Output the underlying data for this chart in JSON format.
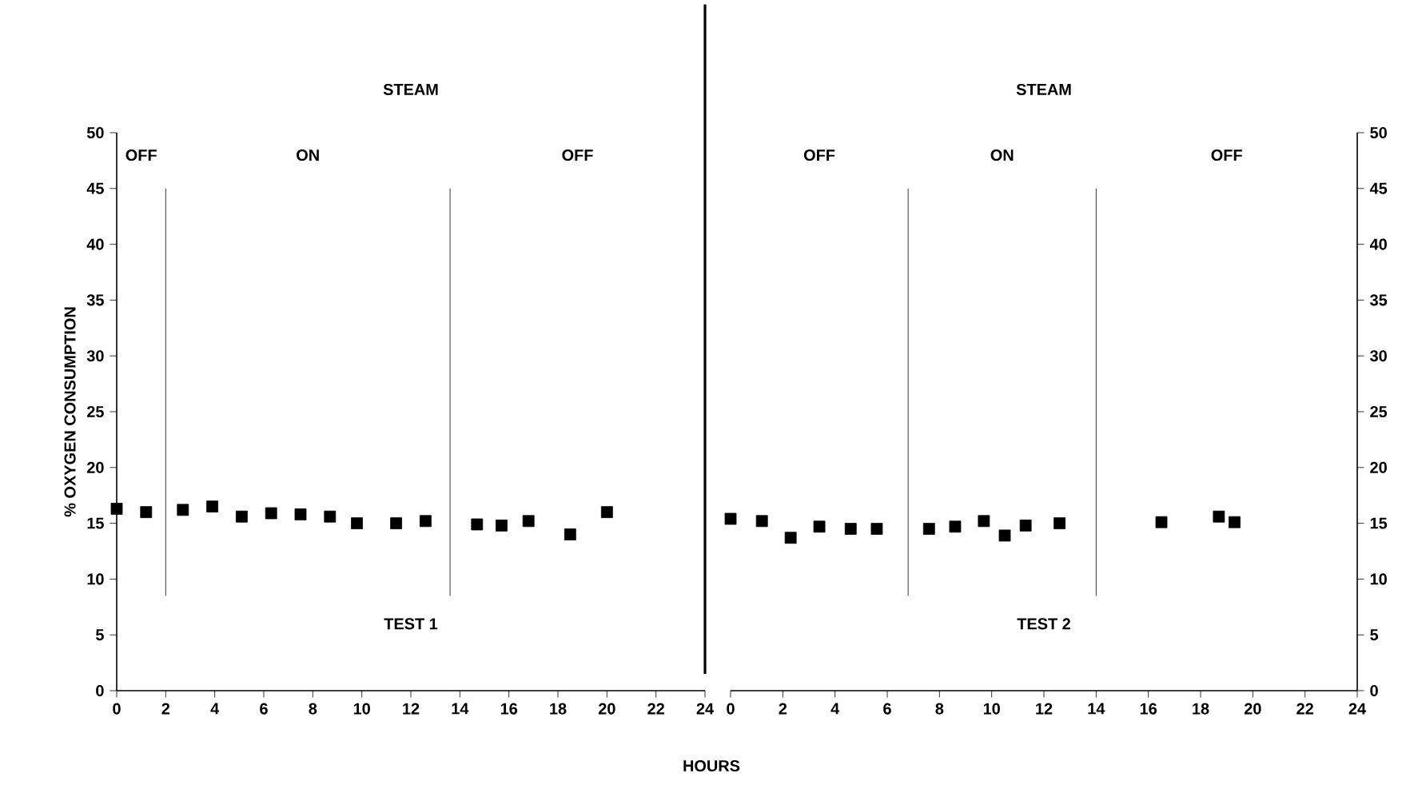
{
  "chart_data": [
    {
      "type": "scatter",
      "title": "STEAM",
      "xlabel": "HOURS",
      "ylabel": "% OXYGEN CONSUMPTION",
      "marker": "square",
      "x": [
        0,
        1.2,
        2.7,
        3.9,
        5.1,
        6.3,
        7.5,
        8.7,
        9.8,
        11.4,
        12.6,
        14.7,
        15.7,
        16.8,
        18.5,
        20.0
      ],
      "values": [
        16.3,
        16.0,
        16.2,
        16.5,
        15.6,
        15.9,
        15.8,
        15.6,
        15.0,
        15.0,
        15.2,
        14.9,
        14.8,
        15.2,
        14.0,
        16.0
      ],
      "color": "#000000",
      "xlim": [
        0,
        24
      ],
      "xticks": [
        0,
        2,
        4,
        6,
        8,
        10,
        12,
        14,
        16,
        18,
        20,
        22,
        24
      ],
      "ylim": [
        0,
        50
      ],
      "yticks": [
        0,
        5,
        10,
        15,
        20,
        25,
        30,
        35,
        40,
        45,
        50
      ],
      "ref_lines": [
        {
          "axis": "x",
          "value": 2.0
        },
        {
          "axis": "x",
          "value": 13.6
        }
      ],
      "annotations": [
        "OFF",
        "ON",
        "OFF",
        "TEST 1"
      ]
    },
    {
      "type": "scatter",
      "title": "STEAM",
      "marker": "square",
      "x": [
        0,
        1.2,
        2.3,
        3.4,
        4.6,
        5.6,
        7.6,
        8.6,
        9.7,
        10.5,
        11.3,
        12.6,
        16.5,
        18.7,
        19.3
      ],
      "values": [
        15.4,
        15.2,
        13.7,
        14.7,
        14.5,
        14.5,
        14.5,
        14.7,
        15.2,
        13.9,
        14.8,
        15.0,
        15.1,
        15.6,
        15.1
      ],
      "color": "#000000",
      "xlim": [
        0,
        24
      ],
      "xticks": [
        0,
        2,
        4,
        6,
        8,
        10,
        12,
        14,
        16,
        18,
        20,
        22,
        24
      ],
      "ylim": [
        0,
        50
      ],
      "yticks": [
        0,
        5,
        10,
        15,
        20,
        25,
        30,
        35,
        40,
        45,
        50
      ],
      "ref_lines": [
        {
          "axis": "x",
          "value": 6.8
        },
        {
          "axis": "x",
          "value": 14.0
        }
      ],
      "annotations": [
        "OFF",
        "ON",
        "OFF",
        "TEST 2"
      ]
    }
  ]
}
